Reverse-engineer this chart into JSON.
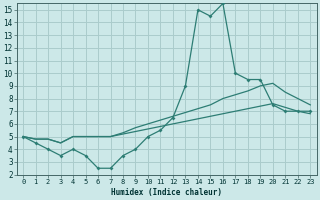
{
  "xlabel": "Humidex (Indice chaleur)",
  "background_color": "#cce8e8",
  "grid_color": "#aacccc",
  "line_color": "#2d7d74",
  "xlim": [
    -0.5,
    23.5
  ],
  "ylim": [
    2,
    15.5
  ],
  "xticks": [
    0,
    1,
    2,
    3,
    4,
    5,
    6,
    7,
    8,
    9,
    10,
    11,
    12,
    13,
    14,
    15,
    16,
    17,
    18,
    19,
    20,
    21,
    22,
    23
  ],
  "yticks": [
    2,
    3,
    4,
    5,
    6,
    7,
    8,
    9,
    10,
    11,
    12,
    13,
    14,
    15
  ],
  "line1_x": [
    0,
    1,
    2,
    3,
    4,
    5,
    6,
    7,
    8,
    9,
    10,
    11,
    12,
    13,
    14,
    15,
    16,
    17,
    18,
    19,
    20,
    21,
    22,
    23
  ],
  "line1_y": [
    5,
    4.5,
    4,
    3.5,
    4,
    3.5,
    2.5,
    2.5,
    3.5,
    4,
    5,
    5.5,
    6.5,
    9,
    15,
    14.5,
    15.5,
    10,
    9.5,
    9.5,
    7.5,
    7,
    7,
    7
  ],
  "line2_x": [
    0,
    1,
    2,
    3,
    4,
    5,
    6,
    7,
    8,
    9,
    10,
    11,
    12,
    13,
    14,
    15,
    16,
    17,
    18,
    19,
    20,
    21,
    22,
    23
  ],
  "line2_y": [
    5,
    4.8,
    4.8,
    4.5,
    5,
    5,
    5,
    5,
    5.3,
    5.7,
    6.0,
    6.3,
    6.6,
    6.9,
    7.2,
    7.5,
    8.0,
    8.3,
    8.6,
    9.0,
    9.2,
    8.5,
    8.0,
    7.5
  ],
  "line3_x": [
    0,
    1,
    2,
    3,
    4,
    5,
    6,
    7,
    8,
    9,
    10,
    11,
    12,
    13,
    14,
    15,
    16,
    17,
    18,
    19,
    20,
    21,
    22,
    23
  ],
  "line3_y": [
    5,
    4.8,
    4.8,
    4.5,
    5,
    5,
    5,
    5,
    5.2,
    5.4,
    5.6,
    5.8,
    6.0,
    6.2,
    6.4,
    6.6,
    6.8,
    7.0,
    7.2,
    7.4,
    7.6,
    7.3,
    7.0,
    6.8
  ],
  "marker_x": [
    0,
    1,
    2,
    3,
    4,
    5,
    6,
    7,
    8,
    9,
    10,
    11,
    12,
    13,
    14,
    15,
    16,
    17,
    18,
    19,
    20,
    21,
    22,
    23
  ],
  "marker_y": [
    5,
    4.5,
    4,
    3.5,
    4,
    3.5,
    2.5,
    2.5,
    3.5,
    4,
    5,
    5.5,
    6.5,
    9,
    15,
    14.5,
    15.5,
    10,
    9.5,
    9.5,
    7.5,
    7,
    7,
    7
  ]
}
